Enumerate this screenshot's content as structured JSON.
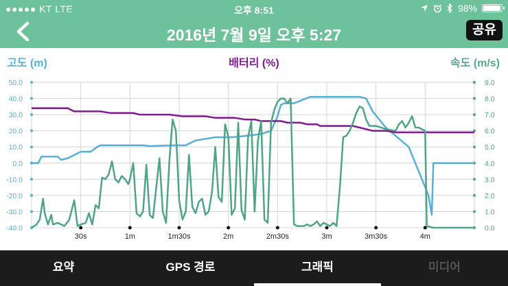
{
  "status_bar": {
    "signal": "●●●●● KT  LTE",
    "time": "오후 8:51",
    "battery": "98%",
    "battery_level": 0.98
  },
  "nav": {
    "title": "2016년 7월 9일 오후 5:27",
    "share_label": "공유"
  },
  "axes": {
    "left_label": "고도 (m)",
    "center_label": "배터리 (%)",
    "right_label": "속도 (m/s)"
  },
  "colors": {
    "header": "#6dc29b",
    "altitude": "#56b0d6",
    "battery": "#7e1a8e",
    "speed": "#4ea485",
    "tabbar": "#1c1c1c"
  },
  "tabs": [
    {
      "label": "요약",
      "state": "normal"
    },
    {
      "label": "GPS 경로",
      "state": "normal"
    },
    {
      "label": "그래픽",
      "state": "active"
    },
    {
      "label": "미디어",
      "state": "disabled"
    }
  ],
  "chart_data": {
    "type": "line",
    "x_unit": "s",
    "x_range": [
      0,
      270
    ],
    "x_ticks": [
      {
        "value": 30,
        "label": "30s"
      },
      {
        "value": 60,
        "label": "1m"
      },
      {
        "value": 90,
        "label": "1m30s"
      },
      {
        "value": 120,
        "label": "2m"
      },
      {
        "value": 150,
        "label": "2m30s"
      },
      {
        "value": 180,
        "label": "3m"
      },
      {
        "value": 210,
        "label": "3m30s"
      },
      {
        "value": 240,
        "label": "4m"
      }
    ],
    "y_left": {
      "label": "고도 (m)",
      "range": [
        -40,
        50
      ],
      "ticks": [
        "-40.0",
        "-30.0",
        "-20.0",
        "-10.0",
        "0.0",
        "10.0",
        "20.0",
        "30.0",
        "40.0",
        "50.0"
      ]
    },
    "y_right": {
      "label": "속도 (m/s)",
      "range": [
        0,
        9
      ],
      "ticks": [
        "0.0",
        "1.0",
        "2.0",
        "3.0",
        "4.0",
        "5.0",
        "6.0",
        "7.0",
        "8.0",
        "9.0"
      ]
    },
    "series": [
      {
        "name": "고도 (m)",
        "axis": "left",
        "color": "#56b0d6",
        "points": [
          [
            0,
            0
          ],
          [
            4,
            0
          ],
          [
            6,
            4
          ],
          [
            16,
            4
          ],
          [
            18,
            2
          ],
          [
            22,
            3
          ],
          [
            30,
            7
          ],
          [
            36,
            7
          ],
          [
            40,
            10
          ],
          [
            42,
            11
          ],
          [
            68,
            11
          ],
          [
            72,
            10.5
          ],
          [
            86,
            11
          ],
          [
            94,
            11
          ],
          [
            100,
            14
          ],
          [
            112,
            16
          ],
          [
            122,
            16
          ],
          [
            132,
            17
          ],
          [
            140,
            18
          ],
          [
            146,
            20
          ],
          [
            150,
            29
          ],
          [
            152,
            36
          ],
          [
            154,
            37
          ],
          [
            160,
            37
          ],
          [
            170,
            41
          ],
          [
            200,
            41
          ],
          [
            204,
            40
          ],
          [
            208,
            32
          ],
          [
            216,
            22
          ],
          [
            230,
            10
          ],
          [
            238,
            -10
          ],
          [
            242,
            -20
          ],
          [
            244,
            -32
          ],
          [
            245,
            0
          ],
          [
            270,
            0
          ]
        ]
      },
      {
        "name": "배터리 (%)",
        "axis": "left",
        "color": "#7e1a8e",
        "points": [
          [
            0,
            34
          ],
          [
            22,
            34
          ],
          [
            26,
            32
          ],
          [
            42,
            32
          ],
          [
            48,
            31
          ],
          [
            62,
            31
          ],
          [
            66,
            30
          ],
          [
            84,
            30
          ],
          [
            92,
            29
          ],
          [
            106,
            29
          ],
          [
            112,
            28
          ],
          [
            124,
            28
          ],
          [
            130,
            27
          ],
          [
            136,
            27
          ],
          [
            140,
            26
          ],
          [
            152,
            26
          ],
          [
            156,
            25
          ],
          [
            164,
            25
          ],
          [
            168,
            24
          ],
          [
            174,
            24
          ],
          [
            176,
            23
          ],
          [
            196,
            23
          ],
          [
            200,
            22
          ],
          [
            204,
            21
          ],
          [
            208,
            20
          ],
          [
            216,
            20
          ],
          [
            222,
            19
          ],
          [
            270,
            19
          ]
        ]
      },
      {
        "name": "속도 (m/s)",
        "axis": "right",
        "color": "#4ea485",
        "points": [
          [
            0,
            0
          ],
          [
            3,
            0.2
          ],
          [
            5,
            0.5
          ],
          [
            7,
            1.8
          ],
          [
            8,
            0.9
          ],
          [
            10,
            0.2
          ],
          [
            12,
            0.8
          ],
          [
            13,
            0.2
          ],
          [
            16,
            0.3
          ],
          [
            18,
            0.2
          ],
          [
            20,
            0.1
          ],
          [
            23,
            0.5
          ],
          [
            26,
            1.7
          ],
          [
            28,
            0.1
          ],
          [
            30,
            0.2
          ],
          [
            33,
            0.3
          ],
          [
            35,
            0.9
          ],
          [
            37,
            0.2
          ],
          [
            39,
            1.4
          ],
          [
            41,
            1.2
          ],
          [
            43,
            3.1
          ],
          [
            45,
            3.0
          ],
          [
            47,
            3.3
          ],
          [
            49,
            4.1
          ],
          [
            51,
            3.0
          ],
          [
            53,
            2.8
          ],
          [
            55,
            3.2
          ],
          [
            57,
            3.0
          ],
          [
            59,
            2.7
          ],
          [
            60,
            3.0
          ],
          [
            62,
            4.0
          ],
          [
            64,
            0.9
          ],
          [
            66,
            0.7
          ],
          [
            68,
            1.0
          ],
          [
            70,
            3.9
          ],
          [
            72,
            0.8
          ],
          [
            74,
            0.6
          ],
          [
            76,
            2.5
          ],
          [
            78,
            4.3
          ],
          [
            80,
            1.0
          ],
          [
            82,
            0.3
          ],
          [
            84,
            4.1
          ],
          [
            86,
            6.7
          ],
          [
            88,
            6.0
          ],
          [
            90,
            1.7
          ],
          [
            92,
            0.5
          ],
          [
            94,
            1.0
          ],
          [
            96,
            4.5
          ],
          [
            98,
            1.3
          ],
          [
            100,
            0.9
          ],
          [
            102,
            1.6
          ],
          [
            104,
            1.8
          ],
          [
            106,
            0.8
          ],
          [
            108,
            1.0
          ],
          [
            110,
            2.2
          ],
          [
            112,
            5.0
          ],
          [
            114,
            1.9
          ],
          [
            116,
            1.6
          ],
          [
            118,
            6.4
          ],
          [
            120,
            5.6
          ],
          [
            122,
            0.8
          ],
          [
            124,
            1.2
          ],
          [
            126,
            6.5
          ],
          [
            128,
            1.1
          ],
          [
            130,
            0.5
          ],
          [
            132,
            5.6
          ],
          [
            134,
            6.6
          ],
          [
            136,
            1.0
          ],
          [
            138,
            5.4
          ],
          [
            140,
            6.6
          ],
          [
            142,
            0.5
          ],
          [
            144,
            0.3
          ],
          [
            146,
            6.5
          ],
          [
            148,
            7.3
          ],
          [
            150,
            7.8
          ],
          [
            152,
            8.0
          ],
          [
            154,
            8.0
          ],
          [
            156,
            7.7
          ],
          [
            158,
            8.0
          ],
          [
            160,
            0.2
          ],
          [
            162,
            0.1
          ],
          [
            164,
            0.1
          ],
          [
            166,
            0.1
          ],
          [
            168,
            0.2
          ],
          [
            170,
            0.1
          ],
          [
            172,
            0.2
          ],
          [
            174,
            0.4
          ],
          [
            176,
            0.1
          ],
          [
            178,
            0.3
          ],
          [
            180,
            0.2
          ],
          [
            182,
            0.1
          ],
          [
            184,
            0.3
          ],
          [
            186,
            0.1
          ],
          [
            188,
            2.5
          ],
          [
            190,
            5.6
          ],
          [
            192,
            5.7
          ],
          [
            194,
            6.0
          ],
          [
            196,
            6.5
          ],
          [
            198,
            7.1
          ],
          [
            200,
            7.5
          ],
          [
            202,
            7.4
          ],
          [
            204,
            6.7
          ],
          [
            206,
            6.3
          ],
          [
            210,
            6.3
          ],
          [
            216,
            6.1
          ],
          [
            222,
            6.0
          ],
          [
            224,
            6.4
          ],
          [
            226,
            6.6
          ],
          [
            228,
            6.2
          ],
          [
            230,
            6.5
          ],
          [
            232,
            6.9
          ],
          [
            234,
            6.2
          ],
          [
            236,
            6.2
          ],
          [
            240,
            6.0
          ],
          [
            241,
            0.1
          ],
          [
            245,
            0.0
          ],
          [
            270,
            0.0
          ]
        ]
      }
    ]
  }
}
